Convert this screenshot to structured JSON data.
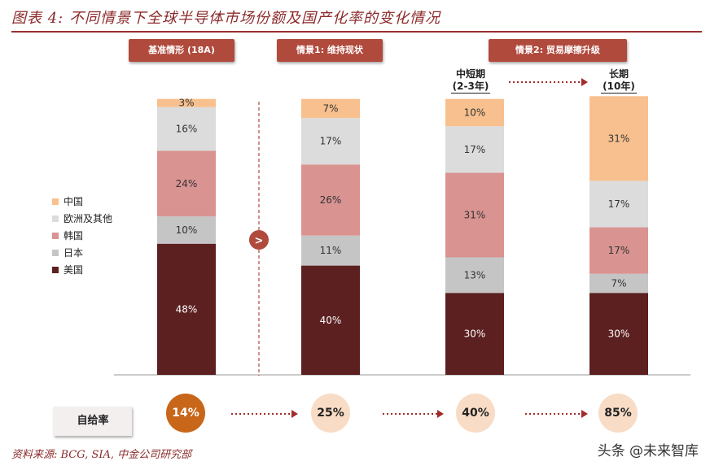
{
  "title": "图表 4: 不同情景下全球半导体市场份额及国产化率的变化情况",
  "scenarios": {
    "base": "基准情形 (18A)",
    "s1": "情景1: 维持现状",
    "s2": "情景2: 贸易摩擦升级"
  },
  "periods": {
    "mid_title": "中短期",
    "mid_sub": "(2-3年)",
    "long_title": "长期",
    "long_sub": "(10年)"
  },
  "arrow_marker": ">",
  "self_sufficiency": {
    "label": "自给率",
    "values": [
      "14%",
      "25%",
      "40%",
      "85%"
    ]
  },
  "source": "资料来源: BCG, SIA, 中金公司研究部",
  "watermark": "头条 @未来智库",
  "colors": {
    "china": "#f8c08e",
    "europe": "#dcdcdc",
    "korea": "#d99391",
    "japan": "#c5c5c5",
    "usa": "#5c2020",
    "accent": "#b04a3c"
  },
  "chart_data": {
    "type": "bar",
    "stacked": true,
    "percent_stacked": true,
    "categories": [
      "基准情形 (18A)",
      "情景1: 维持现状",
      "情景2 中短期 (2-3年)",
      "情景2 长期 (10年)"
    ],
    "series": [
      {
        "name": "美国",
        "values": [
          48,
          40,
          30,
          30
        ],
        "color": "#5c2020"
      },
      {
        "name": "日本",
        "values": [
          10,
          11,
          13,
          7
        ],
        "color": "#c5c5c5"
      },
      {
        "name": "韩国",
        "values": [
          24,
          26,
          31,
          17
        ],
        "color": "#d99391"
      },
      {
        "name": "欧洲及其他",
        "values": [
          16,
          17,
          17,
          17
        ],
        "color": "#dcdcdc"
      },
      {
        "name": "中国",
        "values": [
          3,
          7,
          10,
          31
        ],
        "color": "#f8c08e"
      }
    ],
    "legend_order": [
      "中国",
      "欧洲及其他",
      "韩国",
      "日本",
      "美国"
    ],
    "legend_position": "left",
    "grid": false,
    "ylim": [
      0,
      100
    ]
  }
}
